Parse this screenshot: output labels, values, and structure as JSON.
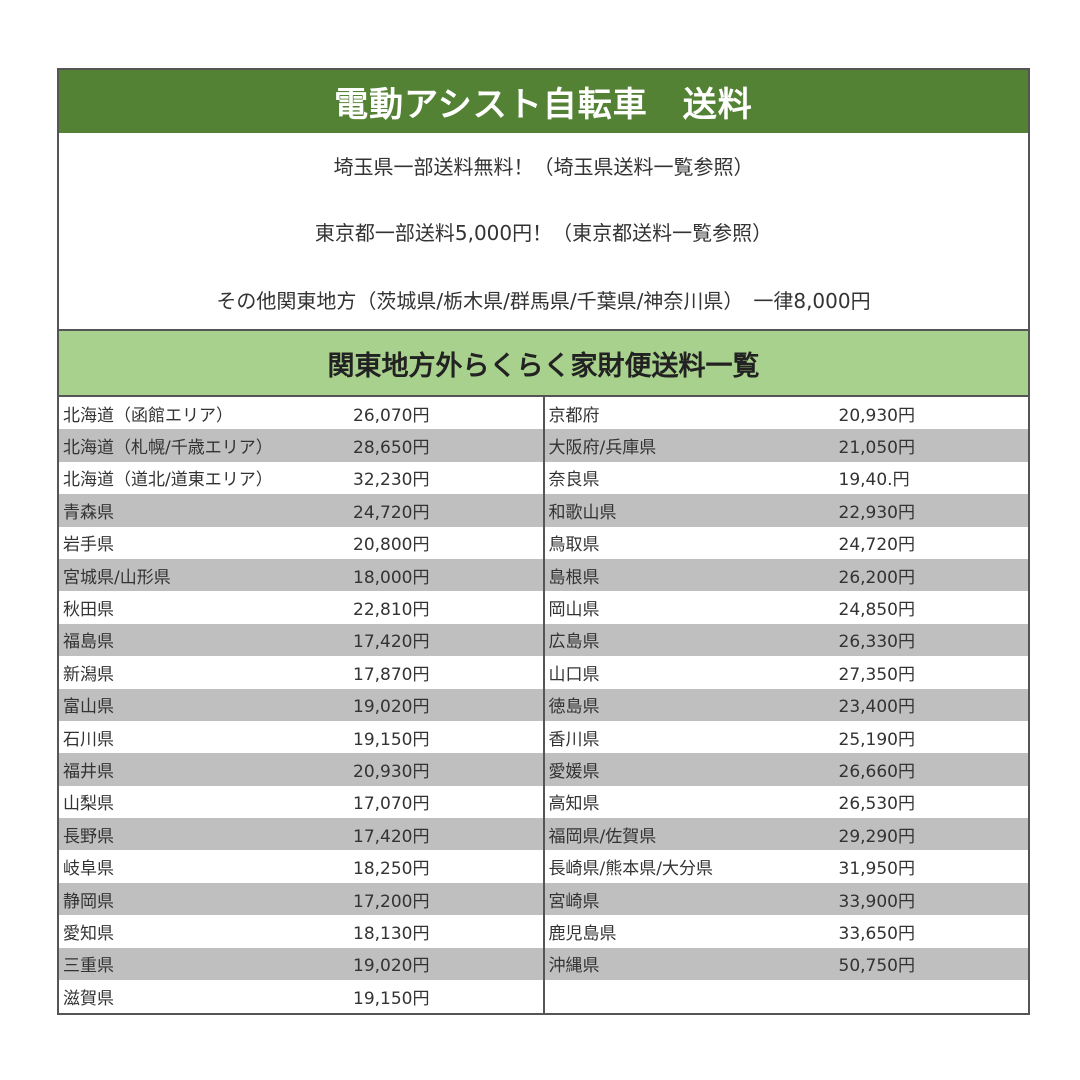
{
  "title": "電動アシスト自転車　送料",
  "info": [
    "埼玉県一部送料無料！（埼玉県送料一覧参照）",
    "東京都一部送料5,000円！（東京都送料一覧参照）",
    "その他関東地方（茨城県/栃木県/群馬県/千葉県/神奈川県）　一律8,000円"
  ],
  "subheader": "関東地方外らくらく家財便送料一覧",
  "colors": {
    "title_bg": "#548235",
    "subheader_bg": "#a9d18e",
    "row_alt": "#bfbfbf"
  },
  "left_rows": [
    {
      "name": "北海道（函館エリア）",
      "price": "26,070円"
    },
    {
      "name": "北海道（札幌/千歳エリア）",
      "price": "28,650円"
    },
    {
      "name": "北海道（道北/道東エリア）",
      "price": "32,230円"
    },
    {
      "name": "青森県",
      "price": "24,720円"
    },
    {
      "name": "岩手県",
      "price": "20,800円"
    },
    {
      "name": "宮城県/山形県",
      "price": "18,000円"
    },
    {
      "name": "秋田県",
      "price": "22,810円"
    },
    {
      "name": "福島県",
      "price": "17,420円"
    },
    {
      "name": "新潟県",
      "price": "17,870円"
    },
    {
      "name": "富山県",
      "price": "19,020円"
    },
    {
      "name": "石川県",
      "price": "19,150円"
    },
    {
      "name": "福井県",
      "price": "20,930円"
    },
    {
      "name": "山梨県",
      "price": "17,070円"
    },
    {
      "name": "長野県",
      "price": "17,420円"
    },
    {
      "name": "岐阜県",
      "price": "18,250円"
    },
    {
      "name": "静岡県",
      "price": "17,200円"
    },
    {
      "name": "愛知県",
      "price": "18,130円"
    },
    {
      "name": "三重県",
      "price": "19,020円"
    },
    {
      "name": "滋賀県",
      "price": "19,150円"
    }
  ],
  "right_rows": [
    {
      "name": "京都府",
      "price": "20,930円"
    },
    {
      "name": "大阪府/兵庫県",
      "price": "21,050円"
    },
    {
      "name": "奈良県",
      "price": "19,40.円"
    },
    {
      "name": "和歌山県",
      "price": "22,930円"
    },
    {
      "name": "鳥取県",
      "price": "24,720円"
    },
    {
      "name": "島根県",
      "price": "26,200円"
    },
    {
      "name": "岡山県",
      "price": "24,850円"
    },
    {
      "name": "広島県",
      "price": "26,330円"
    },
    {
      "name": "山口県",
      "price": "27,350円"
    },
    {
      "name": "徳島県",
      "price": "23,400円"
    },
    {
      "name": "香川県",
      "price": "25,190円"
    },
    {
      "name": "愛媛県",
      "price": "26,660円"
    },
    {
      "name": "高知県",
      "price": "26,530円"
    },
    {
      "name": "福岡県/佐賀県",
      "price": "29,290円"
    },
    {
      "name": "長崎県/熊本県/大分県",
      "price": "31,950円"
    },
    {
      "name": "宮崎県",
      "price": "33,900円"
    },
    {
      "name": "鹿児島県",
      "price": "33,650円"
    },
    {
      "name": "沖縄県",
      "price": "50,750円"
    }
  ]
}
